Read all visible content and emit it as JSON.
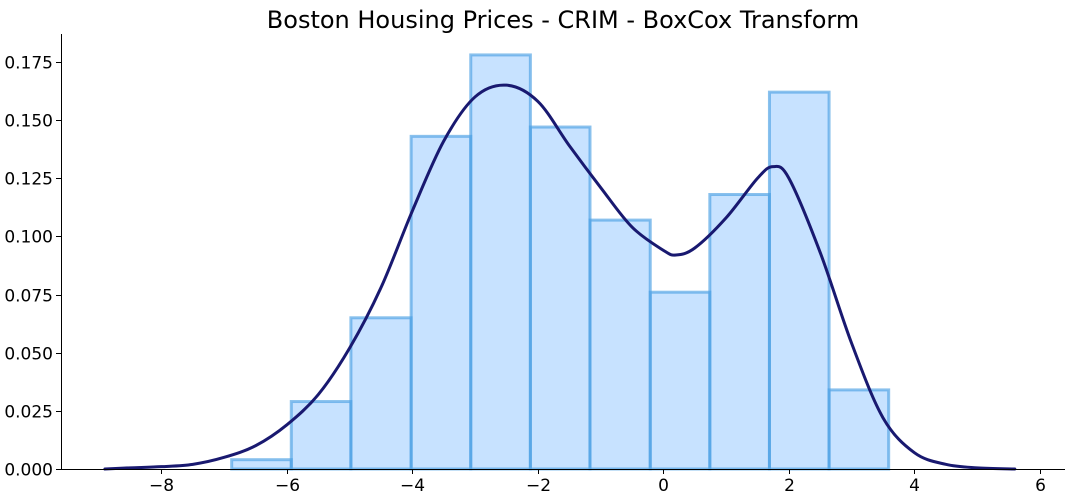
{
  "chart_data": {
    "type": "bar",
    "title": "Boston Housing Prices - CRIM - BoxCox Transform",
    "xlabel": "",
    "ylabel": "",
    "xlim": [
      -9.6,
      6.4
    ],
    "ylim": [
      0,
      0.187
    ],
    "xticks": [
      -8,
      -6,
      -4,
      -2,
      0,
      2,
      4,
      6
    ],
    "xtick_labels": [
      "−8",
      "−6",
      "−4",
      "−2",
      "0",
      "2",
      "4",
      "6"
    ],
    "yticks": [
      0,
      0.025,
      0.05,
      0.075,
      0.1,
      0.125,
      0.15,
      0.175
    ],
    "ytick_labels": [
      "0.000",
      "0.025",
      "0.050",
      "0.075",
      "0.100",
      "0.125",
      "0.150",
      "0.175"
    ],
    "grid": false,
    "legend": "none",
    "histogram": {
      "bin_edges": [
        -6.88,
        -5.93,
        -4.98,
        -4.02,
        -3.07,
        -2.12,
        -1.17,
        -0.21,
        0.74,
        1.69,
        2.64,
        3.59
      ],
      "values": [
        0.004,
        0.029,
        0.065,
        0.143,
        0.178,
        0.147,
        0.107,
        0.076,
        0.118,
        0.162,
        0.034
      ]
    },
    "kde": {
      "x": [
        -8.9,
        -8.5,
        -8.0,
        -7.5,
        -7.0,
        -6.5,
        -6.0,
        -5.5,
        -5.0,
        -4.5,
        -4.0,
        -3.5,
        -3.0,
        -2.5,
        -2.0,
        -1.5,
        -1.0,
        -0.5,
        0.0,
        0.2,
        0.5,
        1.0,
        1.5,
        1.75,
        2.0,
        2.5,
        3.0,
        3.5,
        4.0,
        4.5,
        5.0,
        5.6
      ],
      "y": [
        0.0,
        0.0005,
        0.001,
        0.002,
        0.005,
        0.01,
        0.019,
        0.032,
        0.052,
        0.078,
        0.111,
        0.141,
        0.16,
        0.165,
        0.158,
        0.139,
        0.121,
        0.104,
        0.094,
        0.092,
        0.095,
        0.108,
        0.125,
        0.13,
        0.125,
        0.093,
        0.054,
        0.022,
        0.007,
        0.002,
        0.0005,
        0.0
      ]
    },
    "colors": {
      "bar_fill": "#c7e2ff",
      "bar_edge": "#4c9fe4",
      "kde_line": "#191970"
    }
  }
}
